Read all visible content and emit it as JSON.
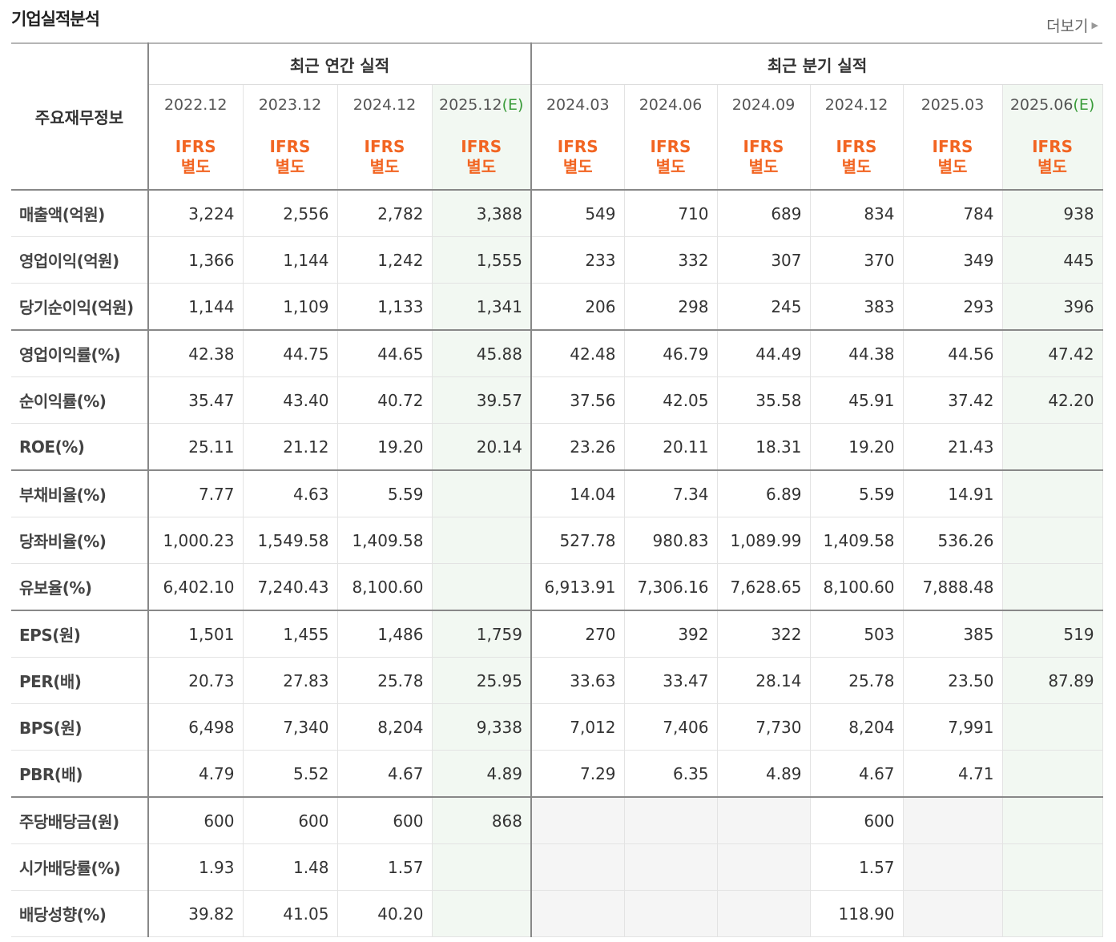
{
  "section_title": "기업실적분석",
  "more_label": "더보기",
  "header": {
    "row_label": "주요재무정보",
    "annual_title": "최근 연간 실적",
    "quarter_title": "최근 분기 실적",
    "annual_periods": [
      {
        "date": "2022.12",
        "est": ""
      },
      {
        "date": "2023.12",
        "est": ""
      },
      {
        "date": "2024.12",
        "est": ""
      },
      {
        "date": "2025.12",
        "est": "(E)"
      }
    ],
    "quarter_periods": [
      {
        "date": "2024.03",
        "est": ""
      },
      {
        "date": "2024.06",
        "est": ""
      },
      {
        "date": "2024.09",
        "est": ""
      },
      {
        "date": "2024.12",
        "est": ""
      },
      {
        "date": "2025.03",
        "est": ""
      },
      {
        "date": "2025.06",
        "est": "(E)"
      }
    ],
    "ifrs_line1": "IFRS",
    "ifrs_line2": "별도"
  },
  "rows": [
    {
      "label": "매출액(억원)",
      "values": [
        "3,224",
        "2,556",
        "2,782",
        "3,388",
        "549",
        "710",
        "689",
        "834",
        "784",
        "938"
      ]
    },
    {
      "label": "영업이익(억원)",
      "values": [
        "1,366",
        "1,144",
        "1,242",
        "1,555",
        "233",
        "332",
        "307",
        "370",
        "349",
        "445"
      ]
    },
    {
      "label": "당기순이익(억원)",
      "values": [
        "1,144",
        "1,109",
        "1,133",
        "1,341",
        "206",
        "298",
        "245",
        "383",
        "293",
        "396"
      ]
    },
    {
      "label": "영업이익률(%)",
      "values": [
        "42.38",
        "44.75",
        "44.65",
        "45.88",
        "42.48",
        "46.79",
        "44.49",
        "44.38",
        "44.56",
        "47.42"
      ]
    },
    {
      "label": "순이익률(%)",
      "values": [
        "35.47",
        "43.40",
        "40.72",
        "39.57",
        "37.56",
        "42.05",
        "35.58",
        "45.91",
        "37.42",
        "42.20"
      ]
    },
    {
      "label": "ROE(%)",
      "values": [
        "25.11",
        "21.12",
        "19.20",
        "20.14",
        "23.26",
        "20.11",
        "18.31",
        "19.20",
        "21.43",
        ""
      ]
    },
    {
      "label": "부채비율(%)",
      "values": [
        "7.77",
        "4.63",
        "5.59",
        "",
        "14.04",
        "7.34",
        "6.89",
        "5.59",
        "14.91",
        ""
      ]
    },
    {
      "label": "당좌비율(%)",
      "values": [
        "1,000.23",
        "1,549.58",
        "1,409.58",
        "",
        "527.78",
        "980.83",
        "1,089.99",
        "1,409.58",
        "536.26",
        ""
      ]
    },
    {
      "label": "유보율(%)",
      "values": [
        "6,402.10",
        "7,240.43",
        "8,100.60",
        "",
        "6,913.91",
        "7,306.16",
        "7,628.65",
        "8,100.60",
        "7,888.48",
        ""
      ]
    },
    {
      "label": "EPS(원)",
      "values": [
        "1,501",
        "1,455",
        "1,486",
        "1,759",
        "270",
        "392",
        "322",
        "503",
        "385",
        "519"
      ]
    },
    {
      "label": "PER(배)",
      "values": [
        "20.73",
        "27.83",
        "25.78",
        "25.95",
        "33.63",
        "33.47",
        "28.14",
        "25.78",
        "23.50",
        "87.89"
      ]
    },
    {
      "label": "BPS(원)",
      "values": [
        "6,498",
        "7,340",
        "8,204",
        "9,338",
        "7,012",
        "7,406",
        "7,730",
        "8,204",
        "7,991",
        ""
      ]
    },
    {
      "label": "PBR(배)",
      "values": [
        "4.79",
        "5.52",
        "4.67",
        "4.89",
        "7.29",
        "6.35",
        "4.89",
        "4.67",
        "4.71",
        ""
      ]
    },
    {
      "label": "주당배당금(원)",
      "values": [
        "600",
        "600",
        "600",
        "868",
        "",
        "",
        "",
        "600",
        "",
        ""
      ]
    },
    {
      "label": "시가배당률(%)",
      "values": [
        "1.93",
        "1.48",
        "1.57",
        "",
        "",
        "",
        "",
        "1.57",
        "",
        ""
      ]
    },
    {
      "label": "배당성향(%)",
      "values": [
        "39.82",
        "41.05",
        "40.20",
        "",
        "",
        "",
        "",
        "118.90",
        "",
        ""
      ]
    }
  ]
}
